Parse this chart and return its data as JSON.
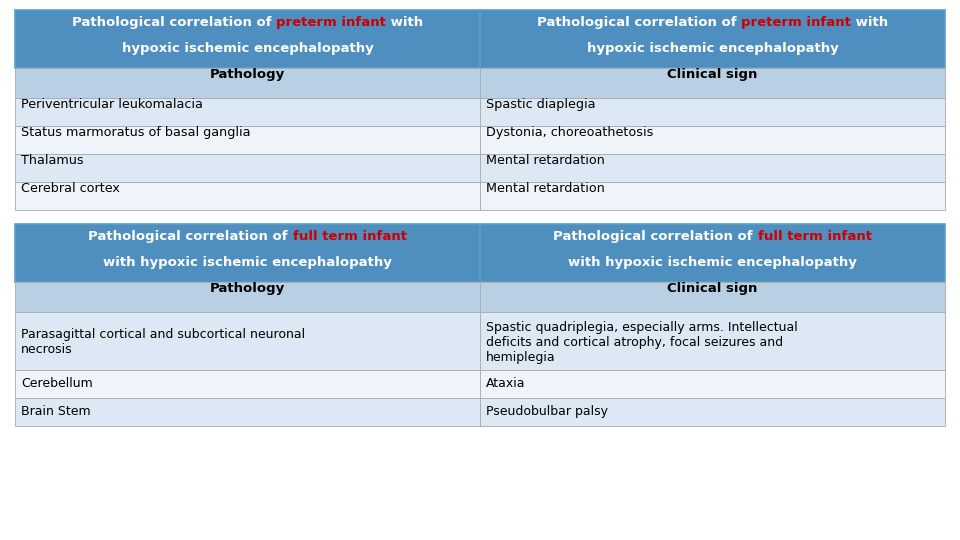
{
  "background_color": "#ffffff",
  "header_bg": "#4f8fc0",
  "subheader_bg": "#b8cfe4",
  "row_bg_odd": "#dce9f5",
  "row_bg_even": "#eef4fa",
  "header_text_color": "#ffffff",
  "header_highlight_color": "#cc0000",
  "table1_subheader": [
    "Pathology",
    "Clinical sign"
  ],
  "table1_rows": [
    [
      "Periventricular leukomalacia",
      "Spastic diaplegia"
    ],
    [
      "Status marmoratus of basal ganglia",
      "Dystonia, choreoathetosis"
    ],
    [
      "Thalamus",
      "Mental retardation"
    ],
    [
      "Cerebral cortex",
      "Mental retardation"
    ]
  ],
  "table2_subheader": [
    "Pathology",
    "Clinical sign"
  ],
  "table2_rows": [
    [
      "Parasagittal cortical and subcortical neuronal\nnecrosis",
      "Spastic quadriplegia, especially arms. Intellectual\ndeficits and cortical atrophy, focal seizures and\nhemiplegia"
    ],
    [
      "Cerebellum",
      "Ataxia"
    ],
    [
      "Brain Stem",
      "Pseudobulbar palsy"
    ]
  ]
}
